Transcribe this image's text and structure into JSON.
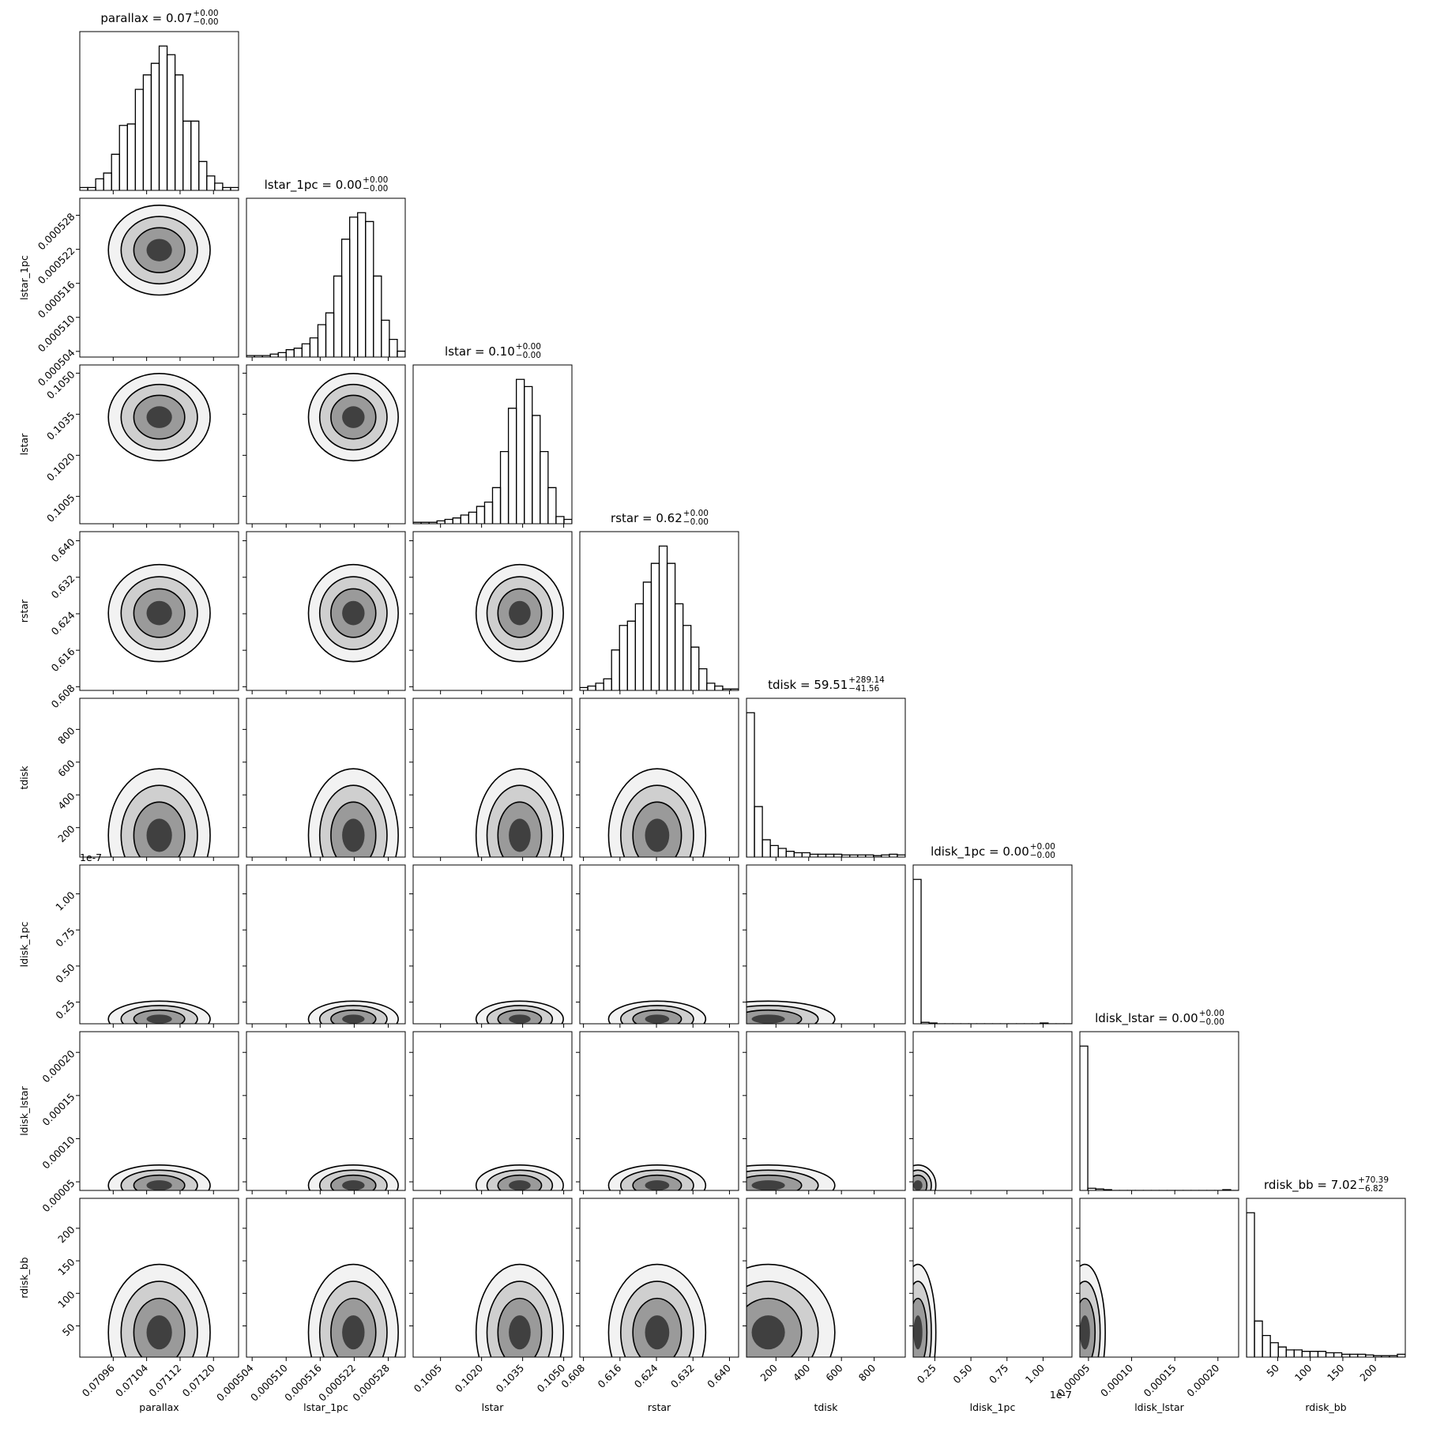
{
  "chart_data": {
    "type": "corner",
    "color": "#000000",
    "params": [
      {
        "name": "parallax",
        "title": {
          "text": "parallax = 0.07",
          "plus": "+0.00",
          "minus": "−0.00"
        },
        "lim": [
          0.07088,
          0.07126
        ],
        "ticks": [
          0.07096,
          0.07104,
          0.07112,
          {
            "value": 0.0712,
            "label": "0.07120"
          }
        ],
        "bins": [
          0.07088,
          0.070899,
          0.070918,
          0.070937,
          0.070956,
          0.070975,
          0.070994,
          0.071013,
          0.071032,
          0.071051,
          0.07107,
          0.071089,
          0.071108,
          0.071127,
          0.071146,
          0.071165,
          0.071184,
          0.071203,
          0.071222,
          0.071241,
          0.07126
        ],
        "counts": [
          2,
          2,
          8,
          12,
          25,
          45,
          46,
          70,
          80,
          88,
          100,
          94,
          80,
          48,
          48,
          20,
          10,
          5,
          2,
          2
        ]
      },
      {
        "name": "lstar_1pc",
        "title": {
          "text": "lstar_1pc = 0.00",
          "plus": "+0.00",
          "minus": "−0.00"
        },
        "lim": [
          0.000503,
          0.000531
        ],
        "ticks": [
          0.000504,
          {
            "value": 0.00051,
            "label": "0.000510"
          },
          0.000516,
          0.000522,
          0.000528
        ],
        "bins": [
          0.000503,
          0.0005044,
          0.0005058,
          0.0005072,
          0.0005086,
          0.00051,
          0.0005114,
          0.0005128,
          0.0005142,
          0.0005156,
          0.000517,
          0.0005184,
          0.0005198,
          0.0005212,
          0.0005226,
          0.000524,
          0.0005254,
          0.0005268,
          0.0005282,
          0.0005296,
          0.000531
        ],
        "counts": [
          1,
          1,
          1,
          2,
          3,
          5,
          6,
          9,
          13,
          22,
          30,
          55,
          80,
          95,
          98,
          92,
          55,
          25,
          12,
          4
        ]
      },
      {
        "name": "lstar",
        "title": {
          "text": "lstar = 0.10",
          "plus": "+0.00",
          "minus": "−0.00"
        },
        "lim": [
          0.0995,
          0.1053
        ],
        "ticks": [
          0.1005,
          {
            "value": 0.102,
            "label": "0.1020"
          },
          0.1035,
          {
            "value": 0.105,
            "label": "0.1050"
          }
        ],
        "bins": [
          0.0995,
          0.09979,
          0.10008,
          0.10037,
          0.10066,
          0.10095,
          0.10124,
          0.10153,
          0.10182,
          0.10211,
          0.1024,
          0.10269,
          0.10298,
          0.10327,
          0.10356,
          0.10385,
          0.10414,
          0.10443,
          0.10472,
          0.10501,
          0.1053
        ],
        "counts": [
          1,
          1,
          1,
          2,
          3,
          4,
          6,
          8,
          12,
          15,
          25,
          50,
          80,
          100,
          95,
          75,
          50,
          25,
          5,
          3
        ]
      },
      {
        "name": "rstar",
        "title": {
          "text": "rstar = 0.62",
          "plus": "+0.00",
          "minus": "−0.00"
        },
        "lim": [
          0.6072,
          0.642
        ],
        "ticks": [
          0.608,
          0.616,
          0.624,
          0.632,
          {
            "value": 0.64,
            "label": "0.640"
          }
        ],
        "bins": [
          0.6072,
          0.60894,
          0.61068,
          0.61242,
          0.61416,
          0.6159,
          0.61764,
          0.61938,
          0.62112,
          0.62286,
          0.6246,
          0.62634,
          0.62808,
          0.62982,
          0.63156,
          0.6333,
          0.63504,
          0.63678,
          0.63852,
          0.64026,
          0.642
        ],
        "counts": [
          2,
          3,
          5,
          8,
          28,
          45,
          48,
          60,
          75,
          88,
          100,
          88,
          60,
          45,
          30,
          15,
          5,
          3,
          1,
          1
        ]
      },
      {
        "name": "tdisk",
        "title": {
          "text": "tdisk = 59.51",
          "plus": "+289.14",
          "minus": "−41.56"
        },
        "lim": [
          20,
          990
        ],
        "ticks": [
          200,
          400,
          600,
          800
        ],
        "bins": [
          20,
          68.5,
          117,
          165.5,
          214,
          262.5,
          311,
          359.5,
          408,
          456.5,
          505,
          553.5,
          602,
          650.5,
          699,
          747.5,
          796,
          844.5,
          893,
          941.5,
          990
        ],
        "counts": [
          100,
          35,
          12,
          8,
          6,
          4,
          3,
          3,
          2,
          2,
          2,
          2,
          1.5,
          1.5,
          1.5,
          1.5,
          1,
          1.5,
          2,
          1.5
        ]
      },
      {
        "name": "ldisk_1pc",
        "title": {
          "text": "ldisk_1pc = 0.00",
          "plus": "+0.00",
          "minus": "−0.00"
        },
        "offset": "1e-7",
        "lim": [
          1e-08,
          1.2e-07
        ],
        "ticks": [
          {
            "value": 2.5e-08,
            "label": "0.25"
          },
          {
            "value": 5e-08,
            "label": "0.50"
          },
          {
            "value": 7.5e-08,
            "label": "0.75"
          },
          {
            "value": 1e-07,
            "label": "1.00"
          }
        ],
        "bins": [
          1e-08,
          1.55e-08,
          2.1e-08,
          2.65e-08,
          3.2e-08,
          3.75e-08,
          4.3e-08,
          4.85e-08,
          5.4e-08,
          5.95e-08,
          6.5e-08,
          7.05e-08,
          7.6e-08,
          8.15e-08,
          8.7e-08,
          9.25e-08,
          9.8e-08,
          1.035e-07,
          1.09e-07,
          1.145e-07,
          1.2e-07
        ],
        "counts": [
          100,
          1,
          0.5,
          0,
          0,
          0,
          0,
          0,
          0,
          0,
          0,
          0,
          0,
          0,
          0,
          0,
          0.5,
          0,
          0,
          0
        ]
      },
      {
        "name": "ldisk_lstar",
        "title": {
          "text": "ldisk_lstar = 0.00",
          "plus": "+0.00",
          "minus": "−0.00"
        },
        "lim": [
          4e-05,
          0.000224
        ],
        "ticks": [
          5e-05,
          {
            "value": 0.0001,
            "label": "0.00010"
          },
          0.00015,
          {
            "value": 0.0002,
            "label": "0.00020"
          }
        ],
        "bins": [
          4e-05,
          4.92e-05,
          5.84e-05,
          6.76e-05,
          7.68e-05,
          8.6e-05,
          9.52e-05,
          0.0001044,
          0.0001136,
          0.0001228,
          0.000132,
          0.0001412,
          0.0001504,
          0.0001596,
          0.0001688,
          0.000178,
          0.0001872,
          0.0001964,
          0.0002056,
          0.0002148,
          0.000224
        ],
        "counts": [
          100,
          1.5,
          1,
          0.5,
          0,
          0,
          0,
          0,
          0,
          0,
          0,
          0,
          0,
          0,
          0,
          0,
          0,
          0,
          0.5,
          0
        ]
      },
      {
        "name": "rdisk_bb",
        "title": {
          "text": "rdisk_bb = 7.02",
          "plus": "+70.39",
          "minus": "−6.82"
        },
        "lim": [
          2,
          246
        ],
        "ticks": [
          50,
          100,
          150,
          200
        ],
        "bins": [
          2,
          14.2,
          26.4,
          38.6,
          50.8,
          63,
          75.2,
          87.4,
          99.6,
          111.8,
          124,
          136.2,
          148.4,
          160.6,
          172.8,
          185,
          197.2,
          209.4,
          221.6,
          233.8,
          246
        ],
        "counts": [
          100,
          25,
          15,
          10,
          7,
          5,
          5,
          4,
          4,
          4,
          3,
          3,
          2,
          2,
          2,
          1.5,
          1,
          1,
          1,
          2
        ]
      }
    ]
  }
}
